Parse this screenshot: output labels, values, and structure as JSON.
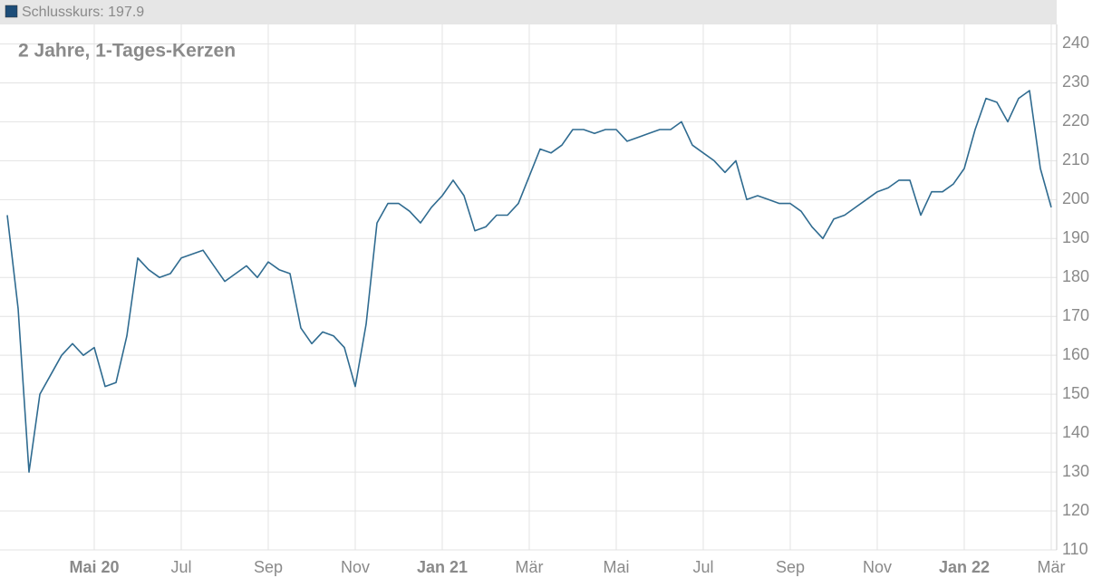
{
  "chart_data": {
    "type": "line",
    "title": "2 Jahre, 1-Tages-Kerzen",
    "legend_text": "Schlusskurs: 197.9",
    "categories": [
      null,
      null,
      null,
      null,
      null,
      null,
      null,
      null,
      "Mai 20",
      null,
      null,
      null,
      null,
      null,
      null,
      null,
      "Jul",
      null,
      null,
      null,
      null,
      null,
      null,
      null,
      "Sep",
      null,
      null,
      null,
      null,
      null,
      null,
      null,
      "Nov",
      null,
      null,
      null,
      null,
      null,
      null,
      null,
      "Jan 21",
      null,
      null,
      null,
      null,
      null,
      null,
      null,
      "Mär",
      null,
      null,
      null,
      null,
      null,
      null,
      null,
      "Mai",
      null,
      null,
      null,
      null,
      null,
      null,
      null,
      "Jul",
      null,
      null,
      null,
      null,
      null,
      null,
      null,
      "Sep",
      null,
      null,
      null,
      null,
      null,
      null,
      null,
      "Nov",
      null,
      null,
      null,
      null,
      null,
      null,
      null,
      "Jan 22",
      null,
      null,
      null,
      null,
      null,
      null,
      null,
      "Mär"
    ],
    "series": [
      {
        "name": "Schlusskurs",
        "color": "#2f6b90",
        "values": [
          196,
          172,
          130,
          150,
          155,
          160,
          163,
          160,
          162,
          152,
          153,
          165,
          185,
          182,
          180,
          181,
          185,
          186,
          187,
          183,
          179,
          181,
          183,
          180,
          184,
          182,
          181,
          167,
          163,
          166,
          165,
          162,
          152,
          168,
          194,
          199,
          199,
          197,
          194,
          198,
          201,
          205,
          201,
          192,
          193,
          196,
          196,
          199,
          206,
          213,
          212,
          214,
          218,
          218,
          217,
          218,
          218,
          215,
          216,
          217,
          218,
          218,
          220,
          214,
          212,
          210,
          207,
          210,
          200,
          201,
          200,
          199,
          199,
          197,
          193,
          190,
          195,
          196,
          198,
          200,
          202,
          203,
          205,
          205,
          196,
          202,
          202,
          204,
          208,
          218,
          226,
          225,
          220,
          226,
          228,
          208,
          198
        ]
      }
    ],
    "ylim": [
      110,
      245
    ],
    "yticks": [
      110,
      120,
      130,
      140,
      150,
      160,
      170,
      180,
      190,
      200,
      210,
      220,
      230,
      240
    ],
    "grid": true
  }
}
